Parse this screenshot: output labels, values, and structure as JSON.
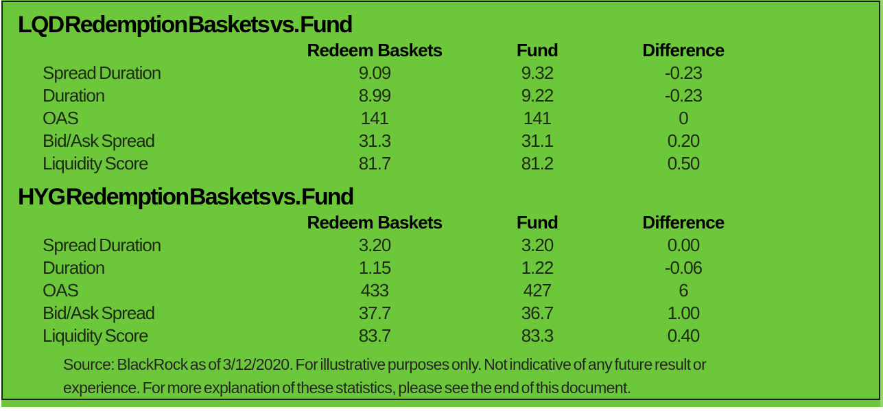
{
  "colors": {
    "panel_background": "#6cc83a",
    "panel_border": "#1e1e1e",
    "heading_text": "#000000",
    "data_text": "#1e2a14"
  },
  "chart_data": [
    {
      "type": "table",
      "title": "LQD Redemption Baskets vs. Fund",
      "columns": [
        "Redeem Baskets",
        "Fund",
        "Difference"
      ],
      "rows": [
        {
          "label": "Spread Duration",
          "values": [
            "9.09",
            "9.32",
            "-0.23"
          ]
        },
        {
          "label": "Duration",
          "values": [
            "8.99",
            "9.22",
            "-0.23"
          ]
        },
        {
          "label": "OAS",
          "values": [
            "141",
            "141",
            "0"
          ]
        },
        {
          "label": "Bid/Ask Spread",
          "values": [
            "31.3",
            "31.1",
            "0.20"
          ]
        },
        {
          "label": "Liquidity Score",
          "values": [
            "81.7",
            "81.2",
            "0.50"
          ]
        }
      ]
    },
    {
      "type": "table",
      "title": "HYG Redemption Baskets vs. Fund",
      "columns": [
        "Redeem Baskets",
        "Fund",
        "Difference"
      ],
      "rows": [
        {
          "label": "Spread Duration",
          "values": [
            "3.20",
            "3.20",
            "0.00"
          ]
        },
        {
          "label": "Duration",
          "values": [
            "1.15",
            "1.22",
            "-0.06"
          ]
        },
        {
          "label": "OAS",
          "values": [
            "433",
            "427",
            "6"
          ]
        },
        {
          "label": "Bid/Ask Spread",
          "values": [
            "37.7",
            "36.7",
            "1.00"
          ]
        },
        {
          "label": "Liquidity Score",
          "values": [
            "83.7",
            "83.3",
            "0.40"
          ]
        }
      ]
    }
  ],
  "footnote": {
    "line1": "Source:  BlackRock as of 3/12/2020. For illustrative purposes only.  Not indicative of any future result or",
    "line2": "experience. For more explanation of these statistics, please see the end of this document."
  }
}
